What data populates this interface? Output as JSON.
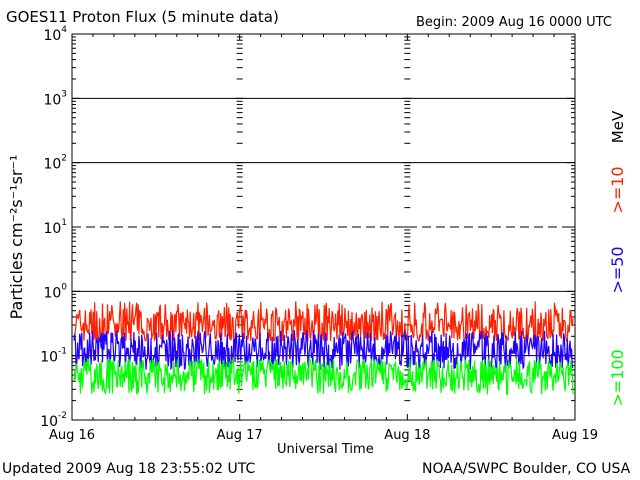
{
  "header": {
    "title": "GOES11 Proton Flux (5 minute data)",
    "begin": "Begin: 2009 Aug 16 0000 UTC"
  },
  "footer": {
    "updated": "Updated 2009 Aug 18 23:55:02 UTC",
    "credit": "NOAA/SWPC Boulder, CO USA"
  },
  "chart_data": {
    "type": "line",
    "title": "GOES11 Proton Flux (5 minute data)",
    "xlabel": "Universal Time",
    "ylabel": "Particles cm⁻²s⁻¹sr⁻¹",
    "yscale": "log",
    "ylim": [
      0.01,
      10000
    ],
    "xlim": [
      "2009-08-16",
      "2009-08-19"
    ],
    "x_ticks": [
      "Aug 16",
      "Aug 17",
      "Aug 18",
      "Aug 19"
    ],
    "y_ticks": [
      {
        "base": "10",
        "exp": "-2"
      },
      {
        "base": "10",
        "exp": "-1"
      },
      {
        "base": "10",
        "exp": "0"
      },
      {
        "base": "10",
        "exp": "1"
      },
      {
        "base": "10",
        "exp": "2"
      },
      {
        "base": "10",
        "exp": "3"
      },
      {
        "base": "10",
        "exp": "4"
      }
    ],
    "threshold_lines": [
      {
        "value": 10,
        "style": "dashed"
      },
      {
        "value": 100,
        "style": "solid"
      },
      {
        "value": 1000,
        "style": "solid"
      },
      {
        "value": 1,
        "style": "solid"
      },
      {
        "value": 0.1,
        "style": "solid"
      }
    ],
    "unit_label": "MeV",
    "series": [
      {
        "name": ">=10",
        "color": "#ff2000",
        "typical_value": 0.3,
        "range": [
          0.17,
          0.7
        ]
      },
      {
        "name": ">=50",
        "color": "#2000ff",
        "typical_value": 0.12,
        "range": [
          0.06,
          0.25
        ]
      },
      {
        "name": ">=100",
        "color": "#00ff00",
        "typical_value": 0.05,
        "range": [
          0.025,
          0.09
        ]
      }
    ],
    "grid": false
  }
}
